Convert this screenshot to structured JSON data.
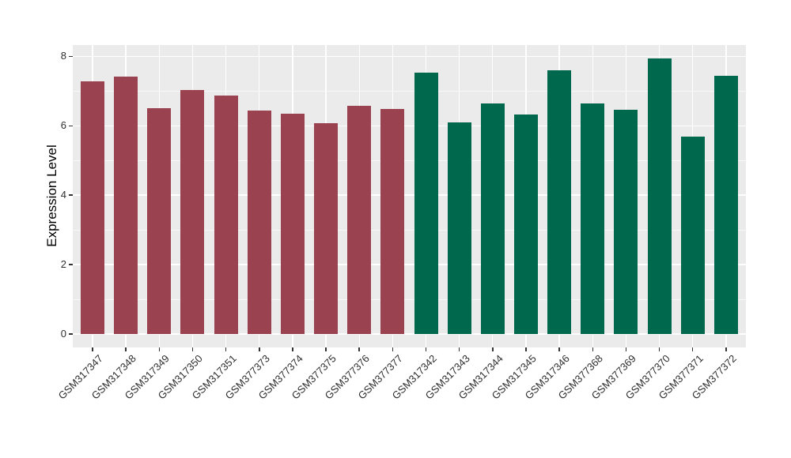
{
  "chart_data": {
    "type": "bar",
    "ylabel": "Expression Level",
    "xlabel": "",
    "ylim": [
      0,
      8.34
    ],
    "yticks": [
      0,
      2,
      4,
      6,
      8
    ],
    "y_minor_gridlines": [
      1,
      3,
      5,
      7
    ],
    "grid": true,
    "legend": "none",
    "panel_background": "#EBEBEB",
    "gridline_color": "#FFFFFF",
    "tick_color": "#333333",
    "axis_text_color": "#2e2e2e",
    "group_colors": {
      "group1": "#9B4250",
      "group2": "#00694D"
    },
    "categories": [
      "GSM317347",
      "GSM317348",
      "GSM317349",
      "GSM317350",
      "GSM317351",
      "GSM377373",
      "GSM377374",
      "GSM377375",
      "GSM377376",
      "GSM377377",
      "GSM317342",
      "GSM317343",
      "GSM317344",
      "GSM317345",
      "GSM317346",
      "GSM377368",
      "GSM377369",
      "GSM377370",
      "GSM377371",
      "GSM377372"
    ],
    "bars": [
      {
        "label": "GSM317347",
        "value": 7.29,
        "group": "group1"
      },
      {
        "label": "GSM317348",
        "value": 7.42,
        "group": "group1"
      },
      {
        "label": "GSM317349",
        "value": 6.51,
        "group": "group1"
      },
      {
        "label": "GSM317350",
        "value": 7.03,
        "group": "group1"
      },
      {
        "label": "GSM317351",
        "value": 6.87,
        "group": "group1"
      },
      {
        "label": "GSM377373",
        "value": 6.44,
        "group": "group1"
      },
      {
        "label": "GSM377374",
        "value": 6.36,
        "group": "group1"
      },
      {
        "label": "GSM377375",
        "value": 6.08,
        "group": "group1"
      },
      {
        "label": "GSM377376",
        "value": 6.57,
        "group": "group1"
      },
      {
        "label": "GSM377377",
        "value": 6.48,
        "group": "group1"
      },
      {
        "label": "GSM317342",
        "value": 7.53,
        "group": "group2"
      },
      {
        "label": "GSM317343",
        "value": 6.1,
        "group": "group2"
      },
      {
        "label": "GSM317344",
        "value": 6.64,
        "group": "group2"
      },
      {
        "label": "GSM317345",
        "value": 6.33,
        "group": "group2"
      },
      {
        "label": "GSM317346",
        "value": 7.6,
        "group": "group2"
      },
      {
        "label": "GSM377368",
        "value": 6.64,
        "group": "group2"
      },
      {
        "label": "GSM377369",
        "value": 6.47,
        "group": "group2"
      },
      {
        "label": "GSM377370",
        "value": 7.94,
        "group": "group2"
      },
      {
        "label": "GSM377371",
        "value": 5.69,
        "group": "group2"
      },
      {
        "label": "GSM377372",
        "value": 7.45,
        "group": "group2"
      }
    ]
  }
}
